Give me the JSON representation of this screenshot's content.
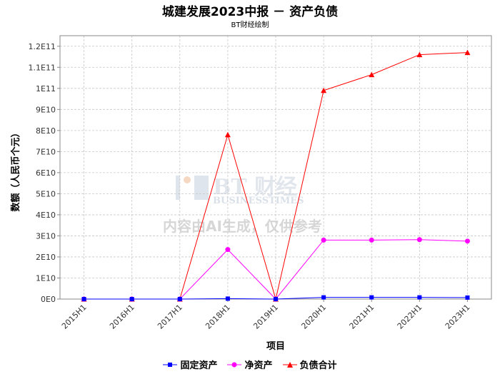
{
  "chart_data": {
    "type": "line",
    "title": "城建发展2023中报 － 资产负债",
    "subtitle": "BT财经绘制",
    "xlabel": "项目",
    "ylabel": "数额（人民币个元）",
    "categories": [
      "2015H1",
      "2016H1",
      "2017H1",
      "2018H1",
      "2019H1",
      "2020H1",
      "2021H1",
      "2022H1",
      "2023H1"
    ],
    "ylim": [
      0,
      125000000000
    ],
    "yticks": [
      {
        "value": 0,
        "label": "0E0"
      },
      {
        "value": 10000000000,
        "label": "1E10"
      },
      {
        "value": 20000000000,
        "label": "2E10"
      },
      {
        "value": 30000000000,
        "label": "3E10"
      },
      {
        "value": 40000000000,
        "label": "4E10"
      },
      {
        "value": 50000000000,
        "label": "5E10"
      },
      {
        "value": 60000000000,
        "label": "6E10"
      },
      {
        "value": 70000000000,
        "label": "7E10"
      },
      {
        "value": 80000000000,
        "label": "8E10"
      },
      {
        "value": 90000000000,
        "label": "9E10"
      },
      {
        "value": 100000000000,
        "label": "1E11"
      },
      {
        "value": 110000000000,
        "label": "1.1E11"
      },
      {
        "value": 120000000000,
        "label": "1.2E11"
      }
    ],
    "grid": true,
    "legend_position": "bottom",
    "series": [
      {
        "name": "固定资产",
        "color": "#0000ff",
        "marker": "square",
        "values": [
          0,
          0,
          0,
          200000000,
          0,
          800000000,
          800000000,
          800000000,
          700000000
        ]
      },
      {
        "name": "净资产",
        "color": "#ff00ff",
        "marker": "circle",
        "values": [
          0,
          0,
          0,
          23500000000,
          0,
          28000000000,
          28000000000,
          28200000000,
          27500000000
        ]
      },
      {
        "name": "负债合计",
        "color": "#ff0000",
        "marker": "triangle",
        "values": [
          0,
          0,
          0,
          78000000000,
          0,
          99000000000,
          106500000000,
          116000000000,
          117000000000
        ]
      }
    ]
  },
  "watermark": {
    "brand": "BT 财经",
    "brand_en": "BUSINESSTIMES",
    "notice": "内容由AI生成，仅供参考"
  }
}
